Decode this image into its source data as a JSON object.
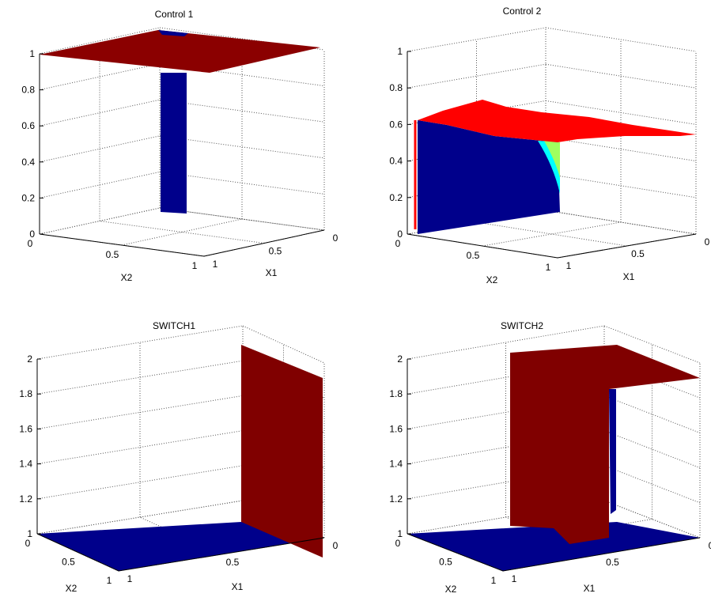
{
  "chart_data": [
    {
      "type": "surface3d",
      "title": "Control 1",
      "xlabel": "X1",
      "ylabel": "X2",
      "zlim": [
        0,
        1
      ],
      "z_ticks": [
        "0",
        "0.2",
        "0.4",
        "0.6",
        "0.8",
        "1"
      ],
      "x_ticks": [
        "0",
        "0.5",
        "1"
      ],
      "y_ticks": [
        "0",
        "0.5",
        "1"
      ],
      "grid": true,
      "colors": {
        "high": "#8b0000",
        "low": "#00008b"
      },
      "description_levels": {
        "plateau_z": 1,
        "column_bottom_z": 0.12
      }
    },
    {
      "type": "surface3d",
      "title": "Control 2",
      "xlabel": "X1",
      "ylabel": "X2",
      "zlim": [
        0,
        1
      ],
      "z_ticks": [
        "0",
        "0.2",
        "0.4",
        "0.6",
        "0.8",
        "1"
      ],
      "x_ticks": [
        "0",
        "0.5",
        "1"
      ],
      "y_ticks": [
        "0",
        "0.5",
        "1"
      ],
      "grid": true,
      "colors": {
        "high": "#ff0000",
        "mid": "#00ffff",
        "low": "#00008b"
      },
      "description_levels": {
        "surface_z": 0.6,
        "wall_bottom_z": 0
      }
    },
    {
      "type": "surface3d",
      "title": "SWITCH1",
      "xlabel": "X1",
      "ylabel": "X2",
      "zlim": [
        1,
        2
      ],
      "z_ticks": [
        "1",
        "1.2",
        "1.4",
        "1.6",
        "1.8",
        "2"
      ],
      "x_ticks": [
        "0",
        "0.5",
        "1"
      ],
      "y_ticks": [
        "0",
        "0.5",
        "1"
      ],
      "grid": true,
      "colors": {
        "high": "#800000",
        "low": "#00008b"
      },
      "description_levels": {
        "floor_z": 1,
        "wall_top_z": 2
      }
    },
    {
      "type": "surface3d",
      "title": "SWITCH2",
      "xlabel": "X1",
      "ylabel": "X2",
      "zlim": [
        1,
        2
      ],
      "z_ticks": [
        "1",
        "1.2",
        "1.4",
        "1.6",
        "1.8",
        "2"
      ],
      "x_ticks": [
        "0",
        "0.5",
        "1"
      ],
      "y_ticks": [
        "0",
        "0.5",
        "1"
      ],
      "grid": true,
      "colors": {
        "high": "#800000",
        "low": "#00008b"
      },
      "description_levels": {
        "floor_z": 1,
        "plateau_z": 2
      }
    }
  ]
}
